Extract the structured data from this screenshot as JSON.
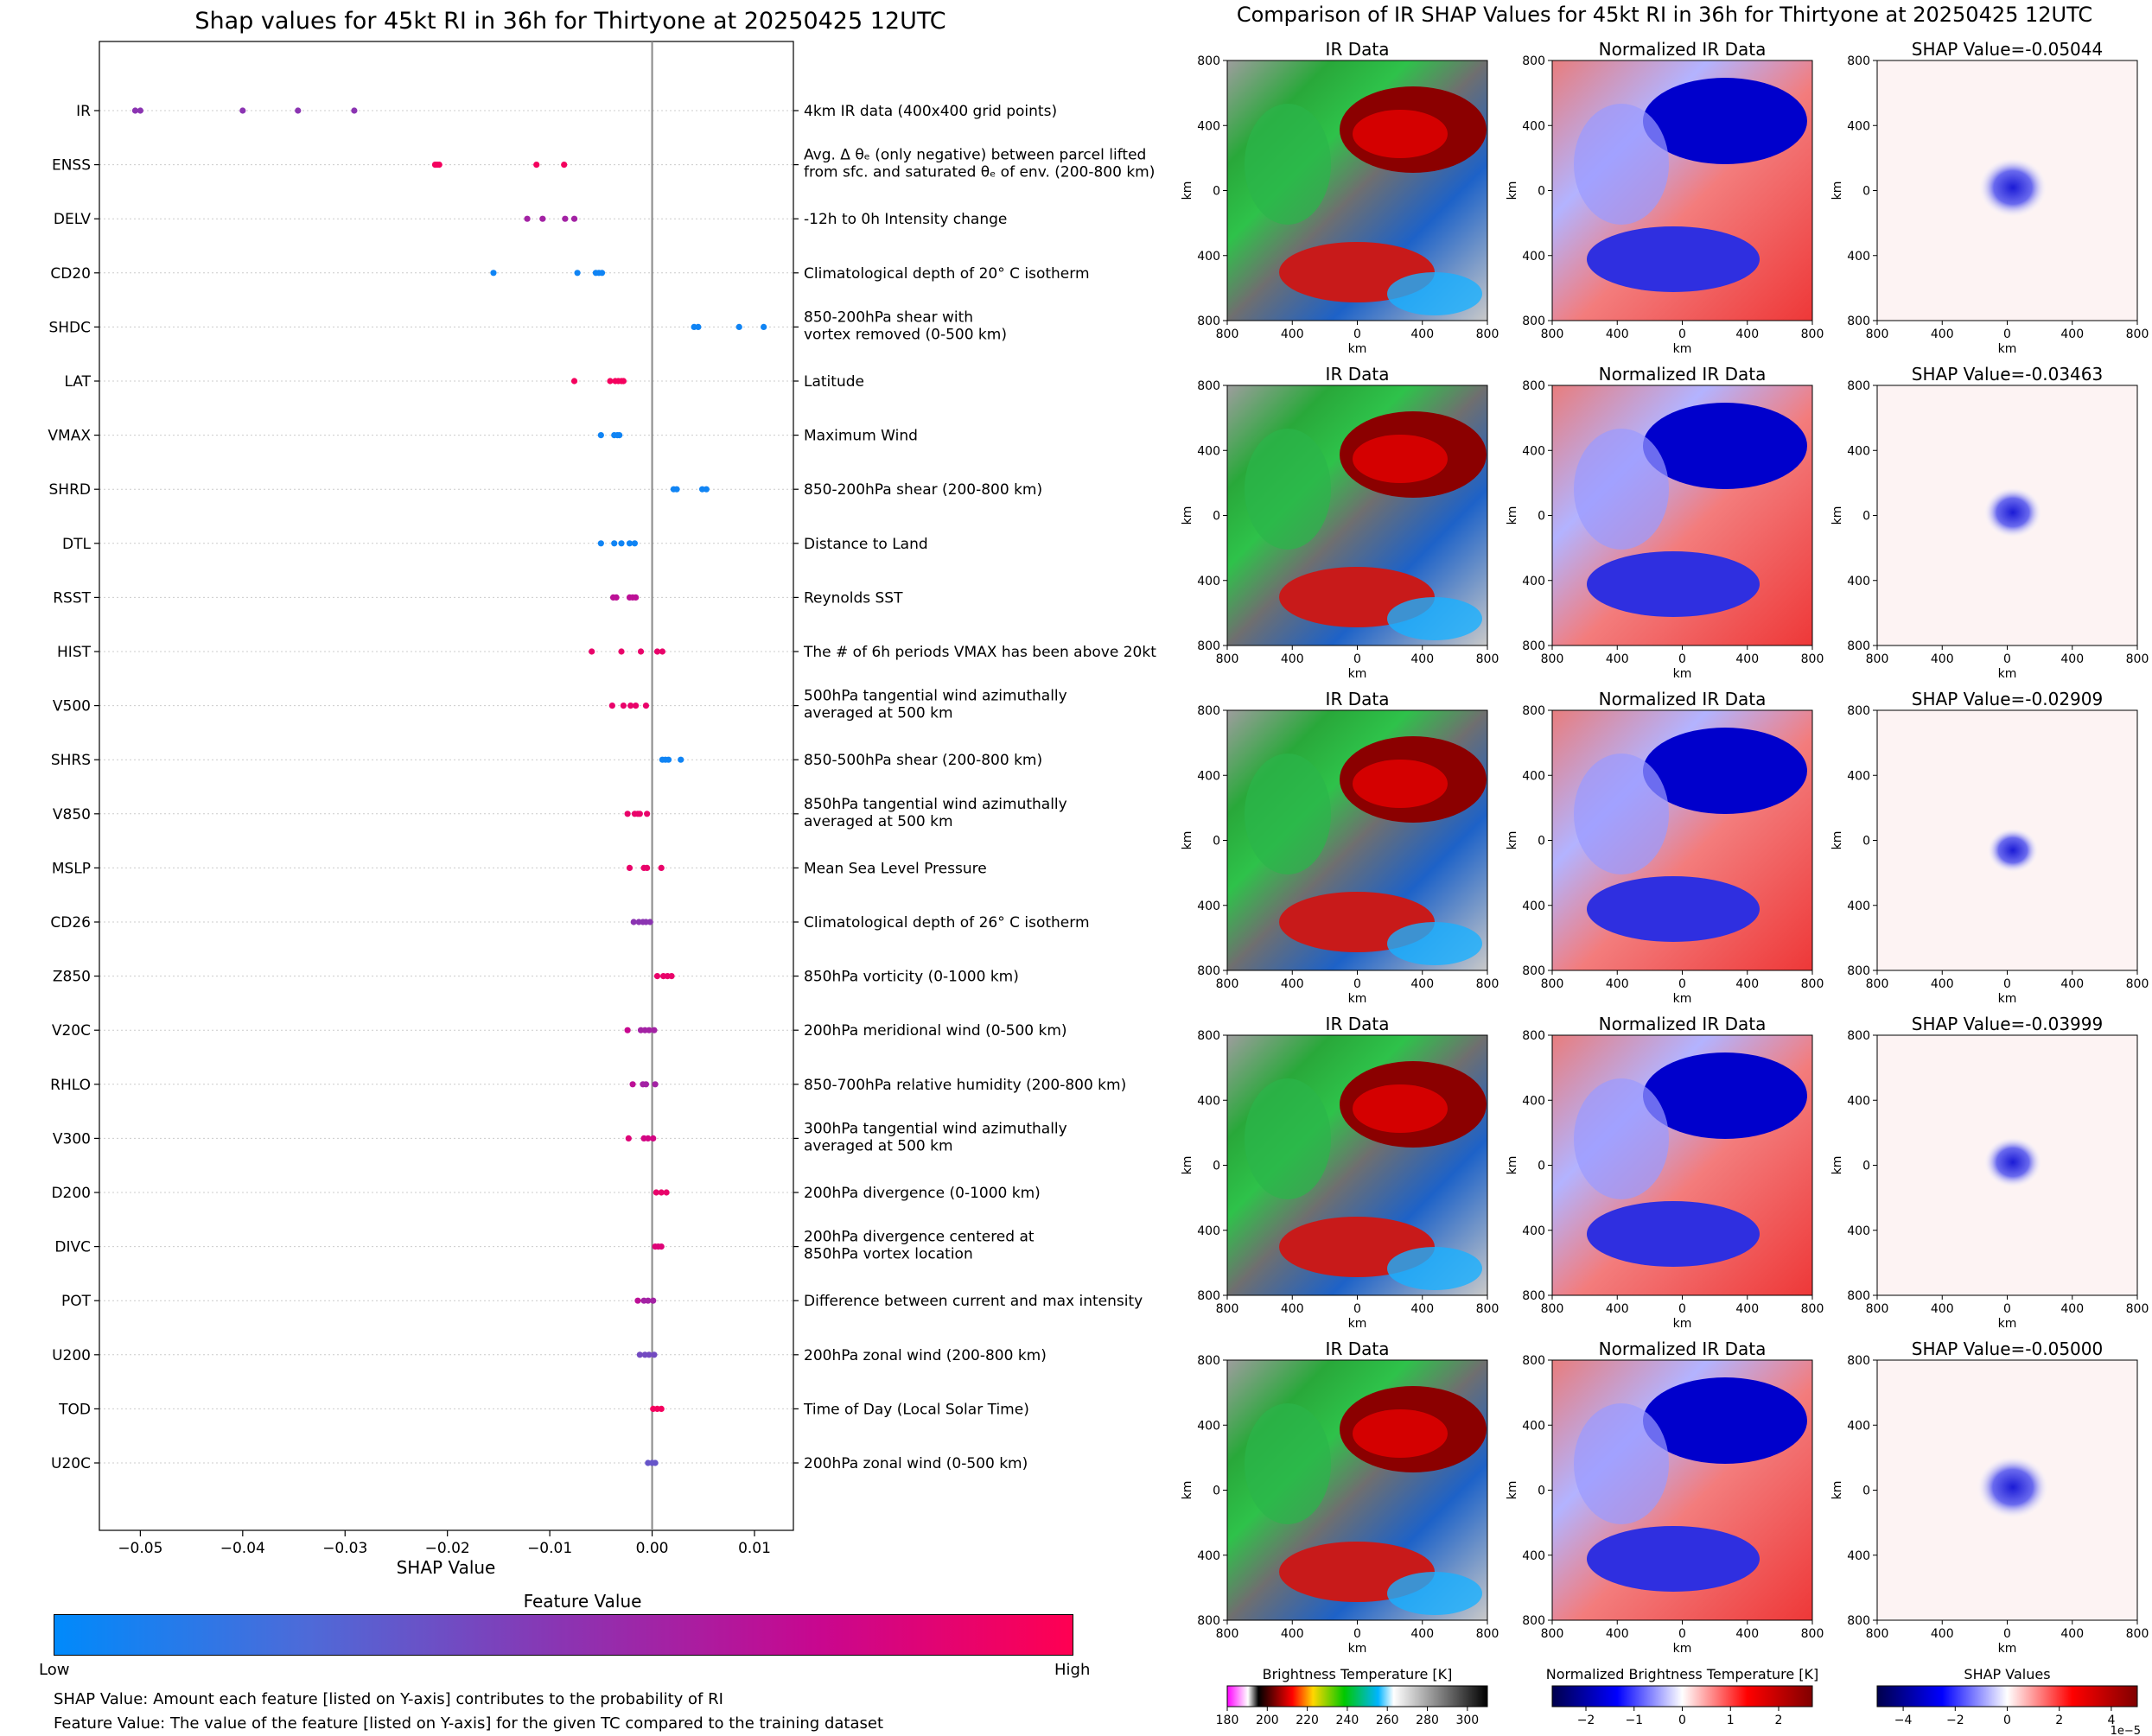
{
  "chart_data": [
    {
      "type": "scatter",
      "title": "Shap values for 45kt RI in 36h for Thirtyone at 20250425 12UTC",
      "xlabel": "SHAP Value",
      "xlim": [
        -0.054,
        0.0138
      ],
      "xticks": [
        "−0.05",
        "−0.04",
        "−0.03",
        "−0.02",
        "−0.01",
        "0.00",
        "0.01"
      ],
      "xtick_values": [
        -0.05,
        -0.04,
        -0.03,
        -0.02,
        -0.01,
        0.0,
        0.01
      ],
      "grid": "horizontal dotted",
      "features": [
        {
          "name": "IR",
          "desc": [
            "4km IR data (400x400 grid points)"
          ],
          "points": [
            [
              -0.0505,
              0.5
            ],
            [
              -0.05,
              0.5
            ],
            [
              -0.04,
              0.5
            ],
            [
              -0.0346,
              0.5
            ],
            [
              -0.0291,
              0.5
            ]
          ]
        },
        {
          "name": "ENSS",
          "desc": [
            "Avg. Δ θₑ (only negative) between parcel lifted",
            "from sfc. and saturated θₑ of env. (200-800 km)"
          ],
          "points": [
            [
              -0.0212,
              0.95
            ],
            [
              -0.021,
              0.95
            ],
            [
              -0.0208,
              0.95
            ],
            [
              -0.0113,
              0.95
            ],
            [
              -0.0086,
              0.95
            ]
          ]
        },
        {
          "name": "DELV",
          "desc": [
            "-12h to 0h Intensity change"
          ],
          "points": [
            [
              -0.0122,
              0.6
            ],
            [
              -0.0107,
              0.6
            ],
            [
              -0.0085,
              0.6
            ],
            [
              -0.0076,
              0.6
            ]
          ]
        },
        {
          "name": "CD20",
          "desc": [
            "Climatological depth of 20° C isotherm"
          ],
          "points": [
            [
              -0.0155,
              0.05
            ],
            [
              -0.0073,
              0.05
            ],
            [
              -0.0055,
              0.05
            ],
            [
              -0.0052,
              0.05
            ],
            [
              -0.0049,
              0.05
            ]
          ]
        },
        {
          "name": "SHDC",
          "desc": [
            "850-200hPa shear with",
            "vortex removed (0-500 km)"
          ],
          "points": [
            [
              0.0041,
              0.05
            ],
            [
              0.0045,
              0.05
            ],
            [
              0.0085,
              0.05
            ],
            [
              0.0109,
              0.05
            ]
          ]
        },
        {
          "name": "LAT",
          "desc": [
            "Latitude"
          ],
          "points": [
            [
              -0.0076,
              0.95
            ],
            [
              -0.0041,
              0.95
            ],
            [
              -0.0036,
              0.95
            ],
            [
              -0.0033,
              0.95
            ],
            [
              -0.003,
              0.95
            ],
            [
              -0.0028,
              0.95
            ]
          ]
        },
        {
          "name": "VMAX",
          "desc": [
            "Maximum Wind"
          ],
          "points": [
            [
              -0.005,
              0.05
            ],
            [
              -0.0037,
              0.05
            ],
            [
              -0.0034,
              0.05
            ],
            [
              -0.0032,
              0.05
            ]
          ]
        },
        {
          "name": "SHRD",
          "desc": [
            "850-200hPa shear (200-800 km)"
          ],
          "points": [
            [
              0.0021,
              0.05
            ],
            [
              0.0024,
              0.05
            ],
            [
              0.0049,
              0.05
            ],
            [
              0.0053,
              0.05
            ]
          ]
        },
        {
          "name": "DTL",
          "desc": [
            "Distance to Land"
          ],
          "points": [
            [
              -0.005,
              0.05
            ],
            [
              -0.0037,
              0.05
            ],
            [
              -0.003,
              0.05
            ],
            [
              -0.0022,
              0.05
            ],
            [
              -0.0017,
              0.05
            ]
          ]
        },
        {
          "name": "RSST",
          "desc": [
            "Reynolds SST"
          ],
          "points": [
            [
              -0.0038,
              0.7
            ],
            [
              -0.0035,
              0.7
            ],
            [
              -0.0022,
              0.7
            ],
            [
              -0.0019,
              0.7
            ],
            [
              -0.0016,
              0.7
            ]
          ]
        },
        {
          "name": "HIST",
          "desc": [
            "The # of 6h periods VMAX has been above 20kt"
          ],
          "points": [
            [
              -0.0059,
              0.9
            ],
            [
              -0.003,
              0.9
            ],
            [
              -0.0011,
              0.9
            ],
            [
              0.0005,
              0.9
            ],
            [
              0.001,
              0.9
            ]
          ]
        },
        {
          "name": "V500",
          "desc": [
            "500hPa tangential wind azimuthally",
            "averaged at 500 km"
          ],
          "points": [
            [
              -0.0039,
              0.9
            ],
            [
              -0.0028,
              0.9
            ],
            [
              -0.0021,
              0.9
            ],
            [
              -0.0016,
              0.9
            ],
            [
              -0.0006,
              0.9
            ]
          ]
        },
        {
          "name": "SHRS",
          "desc": [
            "850-500hPa shear (200-800 km)"
          ],
          "points": [
            [
              0.001,
              0.05
            ],
            [
              0.0013,
              0.05
            ],
            [
              0.0016,
              0.05
            ],
            [
              0.0028,
              0.05
            ]
          ]
        },
        {
          "name": "V850",
          "desc": [
            "850hPa tangential wind azimuthally",
            "averaged at 500 km"
          ],
          "points": [
            [
              -0.0024,
              0.9
            ],
            [
              -0.0017,
              0.9
            ],
            [
              -0.0014,
              0.9
            ],
            [
              -0.0012,
              0.9
            ],
            [
              -0.0005,
              0.9
            ]
          ]
        },
        {
          "name": "MSLP",
          "desc": [
            "Mean Sea Level Pressure"
          ],
          "points": [
            [
              -0.0022,
              0.9
            ],
            [
              -0.0008,
              0.9
            ],
            [
              -0.0005,
              0.9
            ],
            [
              0.0009,
              0.9
            ]
          ]
        },
        {
          "name": "CD26",
          "desc": [
            "Climatological depth of 26° C isotherm"
          ],
          "points": [
            [
              -0.0018,
              0.5
            ],
            [
              -0.0013,
              0.5
            ],
            [
              -0.0009,
              0.5
            ],
            [
              -0.0006,
              0.5
            ],
            [
              -0.0002,
              0.5
            ]
          ]
        },
        {
          "name": "Z850",
          "desc": [
            "850hPa vorticity (0-1000 km)"
          ],
          "points": [
            [
              0.0005,
              0.9
            ],
            [
              0.0011,
              0.9
            ],
            [
              0.0015,
              0.9
            ],
            [
              0.0019,
              0.9
            ]
          ]
        },
        {
          "name": "V20C",
          "desc": [
            "200hPa meridional wind (0-500 km)"
          ],
          "points": [
            [
              -0.0024,
              0.75
            ],
            [
              -0.0011,
              0.6
            ],
            [
              -0.0007,
              0.6
            ],
            [
              -0.0003,
              0.6
            ],
            [
              0.0002,
              0.6
            ]
          ]
        },
        {
          "name": "RHLO",
          "desc": [
            "850-700hPa relative humidity (200-800 km)"
          ],
          "points": [
            [
              -0.0019,
              0.7
            ],
            [
              -0.0009,
              0.6
            ],
            [
              -0.0006,
              0.6
            ],
            [
              0.0003,
              0.6
            ]
          ]
        },
        {
          "name": "V300",
          "desc": [
            "300hPa tangential wind azimuthally",
            "averaged at 500 km"
          ],
          "points": [
            [
              -0.0023,
              0.85
            ],
            [
              -0.0008,
              0.8
            ],
            [
              -0.0004,
              0.8
            ],
            [
              0.0001,
              0.8
            ]
          ]
        },
        {
          "name": "D200",
          "desc": [
            "200hPa divergence (0-1000 km)"
          ],
          "points": [
            [
              0.0004,
              0.9
            ],
            [
              0.0009,
              0.9
            ],
            [
              0.0014,
              0.9
            ]
          ]
        },
        {
          "name": "DIVC",
          "desc": [
            "200hPa divergence centered at",
            "850hPa vortex location"
          ],
          "points": [
            [
              0.0003,
              0.85
            ],
            [
              0.0006,
              0.85
            ],
            [
              0.0009,
              0.85
            ]
          ]
        },
        {
          "name": "POT",
          "desc": [
            "Difference between current and max intensity"
          ],
          "points": [
            [
              -0.0014,
              0.7
            ],
            [
              -0.0008,
              0.6
            ],
            [
              -0.0004,
              0.6
            ],
            [
              0.0001,
              0.6
            ]
          ]
        },
        {
          "name": "U200",
          "desc": [
            "200hPa zonal wind (200-800 km)"
          ],
          "points": [
            [
              -0.0012,
              0.4
            ],
            [
              -0.0007,
              0.4
            ],
            [
              -0.0003,
              0.4
            ],
            [
              0.0002,
              0.4
            ]
          ]
        },
        {
          "name": "TOD",
          "desc": [
            "Time of Day (Local Solar Time)"
          ],
          "points": [
            [
              0.0001,
              0.95
            ],
            [
              0.0005,
              0.95
            ],
            [
              0.0009,
              0.95
            ]
          ]
        },
        {
          "name": "U20C",
          "desc": [
            "200hPa zonal wind (0-500 km)"
          ],
          "points": [
            [
              -0.0004,
              0.35
            ],
            [
              0.0,
              0.35
            ],
            [
              0.0003,
              0.35
            ]
          ]
        }
      ],
      "colorbar": {
        "title": "Feature Value",
        "low_label": "Low",
        "high_label": "High",
        "colors": [
          "#008afb",
          "#4e6ad8",
          "#8b34b2",
          "#c8078f",
          "#ff0052"
        ]
      }
    },
    {
      "type": "heatmap",
      "title": "Comparison of IR SHAP Values for 45kt RI in 36h for Thirtyone at 20250425 12UTC",
      "column_titles": [
        "IR Data",
        "Normalized IR Data"
      ],
      "shap_titles": [
        "SHAP Value=-0.05044",
        "SHAP Value=-0.03463",
        "SHAP Value=-0.02909",
        "SHAP Value=-0.03999",
        "SHAP Value=-0.05000"
      ],
      "axis_label": "km",
      "xticks": [
        "800",
        "400",
        "0",
        "400",
        "800"
      ],
      "yticks": [
        "800",
        "400",
        "0",
        "400",
        "800"
      ],
      "colorbars": [
        {
          "title": "Brightness Temperature [K]",
          "ticks": [
            "180",
            "200",
            "220",
            "240",
            "260",
            "280",
            "300"
          ],
          "range": [
            180,
            310
          ]
        },
        {
          "title": "Normalized Brightness Temperature [K]",
          "ticks": [
            "−2",
            "−1",
            "0",
            "1",
            "2"
          ],
          "range": [
            -2.7,
            2.7
          ]
        },
        {
          "title": "SHAP Values",
          "ticks": [
            "−4",
            "−2",
            "0",
            "2",
            "4"
          ],
          "range": [
            -5,
            5
          ],
          "offset_label": "1e−5"
        }
      ]
    }
  ],
  "notes": {
    "shap": "SHAP Value: Amount each feature [listed on Y-axis] contributes to the probability of RI",
    "feature": "Feature Value: The value of the feature [listed on Y-axis] for the given TC compared to the training dataset"
  }
}
